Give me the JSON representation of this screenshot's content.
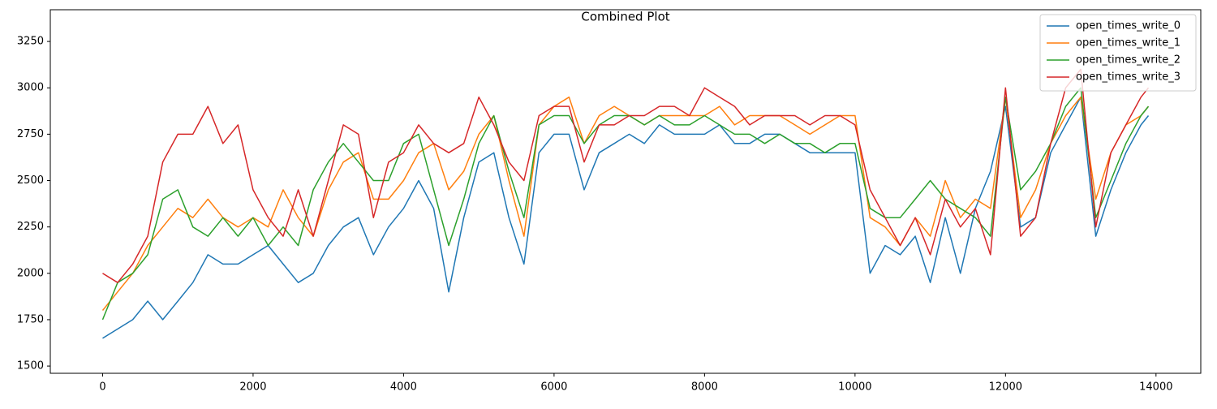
{
  "chart_data": {
    "type": "line",
    "title": "Combined Plot",
    "x": [
      0,
      200,
      400,
      600,
      800,
      1000,
      1200,
      1400,
      1600,
      1800,
      2000,
      2200,
      2400,
      2600,
      2800,
      3000,
      3200,
      3400,
      3600,
      3800,
      4000,
      4200,
      4400,
      4600,
      4800,
      5000,
      5200,
      5400,
      5600,
      5800,
      6000,
      6200,
      6400,
      6600,
      6800,
      7000,
      7200,
      7400,
      7600,
      7800,
      8000,
      8200,
      8400,
      8600,
      8800,
      9000,
      9200,
      9400,
      9600,
      9800,
      10000,
      10200,
      10400,
      10600,
      10800,
      11000,
      11200,
      11400,
      11600,
      11800,
      12000,
      12200,
      12400,
      12600,
      12800,
      13000,
      13200,
      13400,
      13600,
      13800,
      13900
    ],
    "series": [
      {
        "name": "open_times_write_0",
        "color": "#1f77b4",
        "values": [
          1650,
          1700,
          1750,
          1850,
          1750,
          1850,
          1950,
          2100,
          2050,
          2050,
          2100,
          2150,
          2050,
          1950,
          2000,
          2150,
          2250,
          2300,
          2100,
          2250,
          2350,
          2500,
          2350,
          1900,
          2300,
          2600,
          2650,
          2300,
          2050,
          2650,
          2750,
          2750,
          2450,
          2650,
          2700,
          2750,
          2700,
          2800,
          2750,
          2750,
          2750,
          2800,
          2700,
          2700,
          2750,
          2750,
          2700,
          2650,
          2650,
          2650,
          2650,
          2000,
          2150,
          2100,
          2200,
          1950,
          2300,
          2000,
          2350,
          2550,
          2900,
          2250,
          2300,
          2650,
          2800,
          2950,
          2200,
          2450,
          2650,
          2800,
          2850
        ]
      },
      {
        "name": "open_times_write_1",
        "color": "#ff7f0e",
        "values": [
          1800,
          1900,
          2000,
          2150,
          2250,
          2350,
          2300,
          2400,
          2300,
          2250,
          2300,
          2250,
          2450,
          2300,
          2200,
          2450,
          2600,
          2650,
          2400,
          2400,
          2500,
          2650,
          2700,
          2450,
          2550,
          2750,
          2850,
          2500,
          2200,
          2800,
          2900,
          2950,
          2700,
          2850,
          2900,
          2850,
          2800,
          2850,
          2850,
          2850,
          2850,
          2900,
          2800,
          2850,
          2850,
          2850,
          2800,
          2750,
          2800,
          2850,
          2850,
          2300,
          2250,
          2150,
          2300,
          2200,
          2500,
          2300,
          2400,
          2350,
          2950,
          2300,
          2450,
          2700,
          2850,
          2950,
          2400,
          2650,
          2800,
          2850,
          2900
        ]
      },
      {
        "name": "open_times_write_2",
        "color": "#2ca02c",
        "values": [
          1750,
          1950,
          2000,
          2100,
          2400,
          2450,
          2250,
          2200,
          2300,
          2200,
          2300,
          2150,
          2250,
          2150,
          2450,
          2600,
          2700,
          2600,
          2500,
          2500,
          2700,
          2750,
          2450,
          2150,
          2400,
          2700,
          2850,
          2550,
          2300,
          2800,
          2850,
          2850,
          2700,
          2800,
          2850,
          2850,
          2800,
          2850,
          2800,
          2800,
          2850,
          2800,
          2750,
          2750,
          2700,
          2750,
          2700,
          2700,
          2650,
          2700,
          2700,
          2350,
          2300,
          2300,
          2400,
          2500,
          2400,
          2350,
          2300,
          2200,
          2950,
          2450,
          2550,
          2700,
          2900,
          3000,
          2300,
          2500,
          2700,
          2850,
          2900
        ]
      },
      {
        "name": "open_times_write_3",
        "color": "#d62728",
        "values": [
          2000,
          1950,
          2050,
          2200,
          2600,
          2750,
          2750,
          2900,
          2700,
          2800,
          2450,
          2300,
          2200,
          2450,
          2200,
          2500,
          2800,
          2750,
          2300,
          2600,
          2650,
          2800,
          2700,
          2650,
          2700,
          2950,
          2800,
          2600,
          2500,
          2850,
          2900,
          2900,
          2600,
          2800,
          2800,
          2850,
          2850,
          2900,
          2900,
          2850,
          3000,
          2950,
          2900,
          2800,
          2850,
          2850,
          2850,
          2800,
          2850,
          2850,
          2800,
          2450,
          2300,
          2150,
          2300,
          2100,
          2400,
          2250,
          2350,
          2100,
          3000,
          2200,
          2300,
          2700,
          3000,
          3100,
          2250,
          2650,
          2800,
          2950,
          3000
        ]
      }
    ],
    "xlim": [
      -695,
      14595
    ],
    "ylim": [
      1461,
      3421
    ],
    "xticks": [
      0,
      2000,
      4000,
      6000,
      8000,
      10000,
      12000,
      14000
    ],
    "yticks": [
      1500,
      1750,
      2000,
      2250,
      2500,
      2750,
      3000,
      3250
    ],
    "legend": "upper right"
  }
}
